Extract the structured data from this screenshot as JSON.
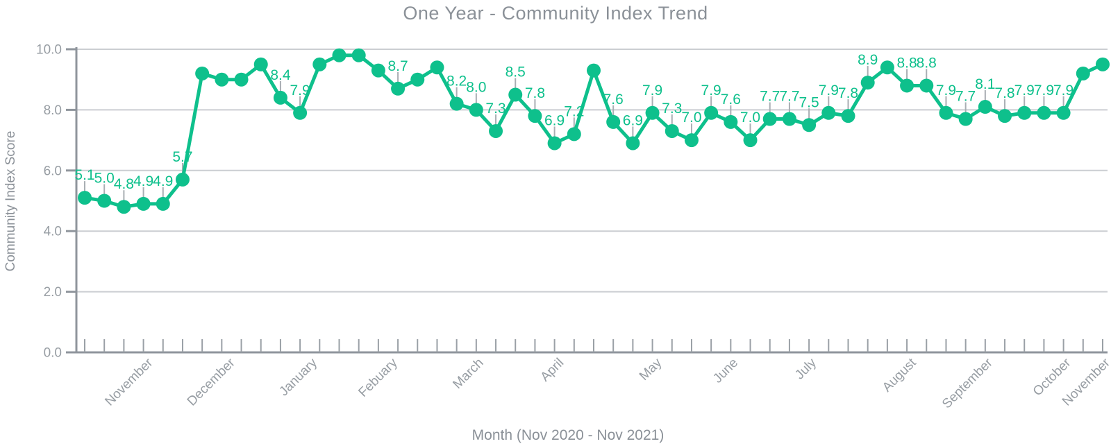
{
  "chart_data": {
    "type": "line",
    "title": "One Year - Community Index Trend",
    "xlabel": "Month (Nov 2020 - Nov 2021)",
    "ylabel": "Community Index Score",
    "ylim": [
      0,
      10
    ],
    "ytick_values": [
      0,
      2,
      4,
      6,
      8,
      10
    ],
    "ytick_labels": [
      "0.0",
      "2.0",
      "4.0",
      "6.0",
      "8.0",
      "10.0"
    ],
    "grid": true,
    "legend": "none",
    "series_name": "Community Index Score",
    "x_unit": "week",
    "values": [
      5.1,
      5.0,
      4.8,
      4.9,
      4.9,
      5.7,
      9.2,
      9.0,
      9.0,
      9.5,
      8.4,
      7.9,
      9.5,
      9.8,
      9.8,
      9.3,
      8.7,
      9.0,
      9.4,
      8.2,
      8.0,
      7.3,
      8.5,
      7.8,
      6.9,
      7.2,
      9.3,
      7.6,
      6.9,
      7.9,
      7.3,
      7.0,
      7.9,
      7.6,
      7.0,
      7.7,
      7.7,
      7.5,
      7.9,
      7.8,
      8.9,
      9.4,
      8.8,
      8.8,
      7.9,
      7.7,
      8.1,
      7.8,
      7.9,
      7.9,
      7.9,
      9.2,
      9.5
    ],
    "value_labels_shown_when_below": 9.0,
    "months": [
      {
        "label": "November",
        "week": 3.5
      },
      {
        "label": "December",
        "week": 7.7
      },
      {
        "label": "January",
        "week": 11.9
      },
      {
        "label": "Febuary",
        "week": 16.0
      },
      {
        "label": "March",
        "week": 20.4
      },
      {
        "label": "April",
        "week": 24.5
      },
      {
        "label": "May",
        "week": 29.5
      },
      {
        "label": "June",
        "week": 33.4
      },
      {
        "label": "July",
        "week": 37.4
      },
      {
        "label": "August",
        "week": 42.5
      },
      {
        "label": "September",
        "week": 46.4
      },
      {
        "label": "October",
        "week": 50.4
      },
      {
        "label": "November",
        "week": 52.4
      }
    ],
    "colors": {
      "line": "#0ec08c",
      "marker": "#0ec08c",
      "value_label": "#0ec08c",
      "grid": "#cbced2",
      "axis": "#8f959c",
      "tick": "#9aa0a6",
      "leader": "#a9aeb3",
      "text": "#8b9198",
      "tick_label": "#979da3",
      "background": "#ffffff"
    }
  }
}
